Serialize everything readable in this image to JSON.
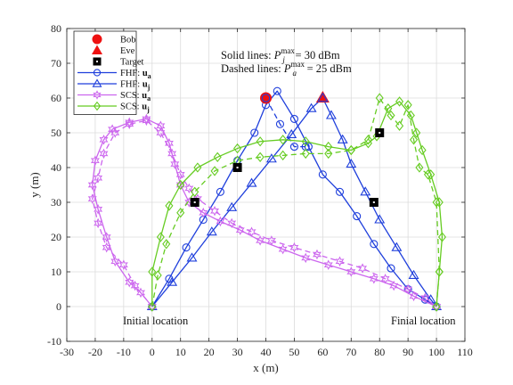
{
  "chart_data": {
    "type": "line",
    "xlabel": "x (m)",
    "ylabel": "y (m)",
    "xlim": [
      -30,
      110
    ],
    "ylim": [
      -10,
      80
    ],
    "x_ticks": [
      -30,
      -20,
      -10,
      0,
      10,
      20,
      30,
      40,
      50,
      60,
      70,
      80,
      90,
      100,
      110
    ],
    "y_ticks": [
      -10,
      0,
      10,
      20,
      30,
      40,
      50,
      60,
      70,
      80
    ],
    "grid": true,
    "legend_position": "top-left",
    "colors": {
      "blue": "#1f3fdc",
      "magenta": "#cc66ee",
      "green": "#66cc22",
      "red": "#ee1111",
      "black": "#000000"
    },
    "annotations": {
      "solid_prefix": "Solid lines: ",
      "solid_sym": "P",
      "solid_sup": "max",
      "solid_sub": "j",
      "solid_suffix": " = 30 dBm",
      "dashed_prefix": "Dashed lines: ",
      "dashed_sym": "P",
      "dashed_sup": "max",
      "dashed_sub": "a",
      "dashed_suffix": " = 25 dBm",
      "initial": "Initial location",
      "final": "Finial location"
    },
    "legend": [
      {
        "key": "bob",
        "label": "Bob"
      },
      {
        "key": "eve",
        "label": "Eve"
      },
      {
        "key": "target",
        "label": "Target"
      },
      {
        "key": "fhf_a",
        "label": "FHF: ",
        "sym": "u",
        "sub": "a"
      },
      {
        "key": "fhf_j",
        "label": "FHF: ",
        "sym": "u",
        "sub": "j"
      },
      {
        "key": "scs_a",
        "label": "SCS: ",
        "sym": "u",
        "sub": "a"
      },
      {
        "key": "scs_j",
        "label": "SCS: ",
        "sym": "u",
        "sub": "j"
      }
    ],
    "points": {
      "bob": {
        "x": 40,
        "y": 60
      },
      "eve": {
        "x": 60,
        "y": 60
      },
      "targets": [
        {
          "x": 15,
          "y": 30
        },
        {
          "x": 30,
          "y": 40
        },
        {
          "x": 78,
          "y": 30
        },
        {
          "x": 80,
          "y": 50
        }
      ]
    },
    "series": [
      {
        "key": "fhf_a_solid",
        "legend": "fhf_a",
        "color": "blue",
        "marker": "circle",
        "dash": false,
        "x": [
          0,
          6,
          12,
          18,
          24,
          30,
          36,
          40,
          44,
          50,
          55,
          60,
          66,
          72,
          78,
          84,
          90,
          96,
          100
        ],
        "y": [
          0,
          8,
          17,
          25,
          33,
          42,
          50,
          58,
          62,
          54,
          46,
          38,
          33,
          26,
          18,
          11,
          5,
          2,
          0
        ]
      },
      {
        "key": "fhf_a_dashed",
        "legend": null,
        "color": "blue",
        "marker": "circle",
        "dash": true,
        "x": [
          40,
          45,
          50,
          54
        ],
        "y": [
          60,
          52.5,
          46,
          46
        ]
      },
      {
        "key": "fhf_j_solid",
        "legend": "fhf_j",
        "color": "blue",
        "marker": "triangle",
        "dash": false,
        "x": [
          0,
          7,
          14,
          21,
          28,
          35,
          42,
          49,
          56,
          60,
          63,
          67,
          70,
          75,
          80,
          86,
          92,
          98,
          100
        ],
        "y": [
          0,
          7,
          14,
          21.5,
          28.5,
          35.5,
          42.5,
          49.5,
          57,
          60,
          55,
          48,
          41,
          33,
          25,
          17,
          9,
          2,
          0
        ]
      },
      {
        "key": "scs_a_solid",
        "legend": "scs_a",
        "color": "magenta",
        "marker": "hexagram",
        "dash": false,
        "x": [
          0,
          -4,
          -8,
          -13,
          -16,
          -19,
          -21,
          -20,
          -17,
          -14,
          -8,
          -2,
          3,
          6,
          8,
          10,
          13,
          18,
          24,
          31,
          38,
          46,
          54,
          62,
          70,
          78,
          85,
          92,
          100
        ],
        "y": [
          0,
          4,
          7,
          13,
          20,
          28,
          35,
          42,
          48,
          51,
          53,
          54,
          52,
          47,
          41,
          35,
          30,
          27,
          24.5,
          22,
          19,
          16.5,
          14,
          12,
          10,
          8,
          6,
          3,
          0
        ]
      },
      {
        "key": "scs_a_dashed",
        "legend": null,
        "color": "magenta",
        "marker": "hexagram",
        "dash": true,
        "x": [
          0,
          -6,
          -10,
          -16,
          -19,
          -21,
          -19,
          -17,
          -13,
          -8,
          -2,
          3,
          7,
          10,
          13,
          16,
          22,
          28,
          35,
          42,
          50,
          58,
          66,
          74,
          82,
          90,
          96,
          100
        ],
        "y": [
          0,
          6,
          12,
          17,
          24,
          31,
          37,
          44,
          50,
          52.5,
          53.5,
          50,
          44,
          38,
          34,
          31,
          27.5,
          24,
          21.5,
          19,
          17,
          15,
          13,
          11,
          8,
          5,
          2.5,
          0
        ]
      },
      {
        "key": "scs_j_solid",
        "legend": "scs_j",
        "color": "green",
        "marker": "diamond",
        "dash": false,
        "x": [
          0,
          0,
          3,
          6,
          10,
          16,
          23,
          30,
          38,
          46,
          54,
          62,
          70,
          76,
          79,
          83,
          87,
          91,
          93,
          95,
          98,
          101,
          102,
          101,
          100
        ],
        "y": [
          0,
          10,
          20,
          29,
          35,
          40,
          43,
          45.5,
          47.5,
          48,
          47.5,
          46,
          45,
          47,
          49,
          57,
          59,
          55,
          50,
          45,
          38,
          30,
          20,
          10,
          0
        ]
      },
      {
        "key": "scs_j_dashed",
        "legend": null,
        "color": "green",
        "marker": "diamond",
        "dash": true,
        "x": [
          0,
          2,
          5,
          10,
          15,
          22,
          30,
          38,
          46,
          54,
          62,
          70,
          76,
          80,
          84,
          87,
          90,
          92,
          94,
          97,
          100,
          101,
          100
        ],
        "y": [
          0,
          9,
          18,
          27,
          33,
          39,
          42,
          43,
          43.5,
          44,
          44,
          45,
          48,
          60,
          55,
          52,
          58,
          48,
          40,
          38,
          30,
          10,
          0
        ]
      }
    ]
  }
}
